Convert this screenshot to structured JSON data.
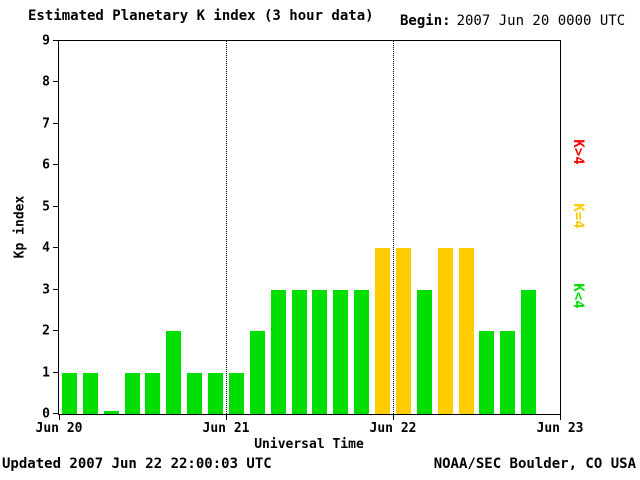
{
  "title": "Estimated Planetary K index (3 hour data)",
  "begin": {
    "label": "Begin:",
    "value": "2007 Jun 20 0000 UTC"
  },
  "axis": {
    "xlabel": "Universal Time",
    "ylabel": "Kp index"
  },
  "legend": [
    {
      "id": "high",
      "label": "K>4",
      "color": "#ff0000"
    },
    {
      "id": "mid",
      "label": "K=4",
      "color": "#ffcc00"
    },
    {
      "id": "low",
      "label": "K<4",
      "color": "#00dd00"
    }
  ],
  "footer": {
    "updated": "Updated 2007 Jun 22 22:00:03 UTC",
    "source": "NOAA/SEC Boulder, CO USA"
  },
  "colors": {
    "low": "#00dd00",
    "mid": "#ffcc00",
    "high": "#ff0000",
    "axis": "#000000",
    "background": "#ffffff"
  },
  "chart_data": {
    "type": "bar",
    "title": "Estimated Planetary K index (3 hour data)",
    "xlabel": "Universal Time",
    "ylabel": "Kp index",
    "ylim": [
      0,
      9
    ],
    "y_ticks": [
      0,
      1,
      2,
      3,
      4,
      5,
      6,
      7,
      8,
      9
    ],
    "x_ticks": [
      "Jun 20",
      "Jun 21",
      "Jun 22",
      "Jun 23"
    ],
    "days": 3,
    "bars_per_day": 8,
    "interval_hours": 3,
    "values": [
      1,
      1,
      0,
      1,
      1,
      2,
      1,
      1,
      1,
      2,
      3,
      3,
      3,
      3,
      3,
      4,
      4,
      3,
      4,
      4,
      2,
      2,
      3
    ],
    "color_rule": {
      "green": "K<4",
      "yellow": "K=4",
      "red": "K>4"
    },
    "day_boundary_lines": "dotted vertical at Jun 21 and Jun 22",
    "legend_position": "right",
    "grid": "off"
  }
}
